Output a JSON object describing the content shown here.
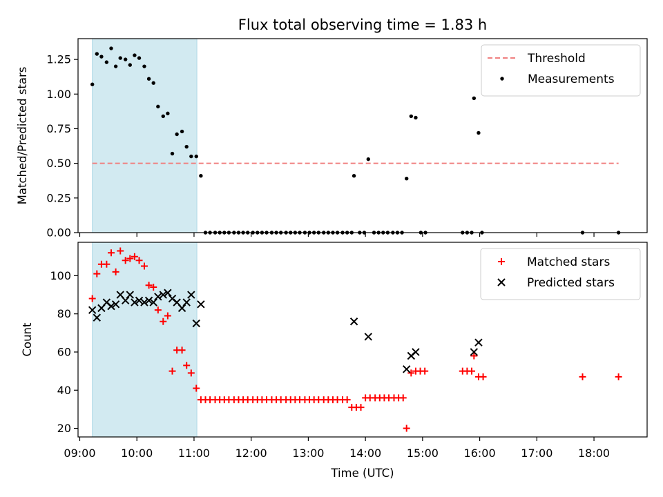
{
  "chart_data": {
    "title": "Flux total observing time = 1.83 h",
    "x_axis": {
      "label": "Time (UTC)",
      "range_hours": [
        8.97,
        18.93
      ],
      "tick_labels": [
        "09:00",
        "10:00",
        "11:00",
        "12:00",
        "13:00",
        "14:00",
        "15:00",
        "16:00",
        "17:00",
        "18:00"
      ]
    },
    "shaded_interval_hours": [
      9.22,
      11.05
    ],
    "shade_color": "#add8e6",
    "panels": [
      {
        "type": "scatter",
        "ylabel": "Matched/Predicted stars",
        "ylim": [
          0,
          1.4
        ],
        "y_ticks": [
          "0.00",
          "0.25",
          "0.50",
          "0.75",
          "1.00",
          "1.25"
        ],
        "legend_position": "top-right",
        "threshold": {
          "name": "Threshold",
          "y": 0.5,
          "x_range": [
            9.22,
            18.43
          ],
          "color": "#f08080",
          "style": "dashed"
        },
        "series": [
          {
            "name": "Measurements",
            "marker": "dot",
            "color": "#000000",
            "points": [
              [
                9.22,
                1.07
              ],
              [
                9.3,
                1.29
              ],
              [
                9.38,
                1.27
              ],
              [
                9.47,
                1.23
              ],
              [
                9.55,
                1.33
              ],
              [
                9.63,
                1.2
              ],
              [
                9.71,
                1.26
              ],
              [
                9.8,
                1.25
              ],
              [
                9.88,
                1.21
              ],
              [
                9.96,
                1.28
              ],
              [
                10.04,
                1.26
              ],
              [
                10.13,
                1.2
              ],
              [
                10.21,
                1.11
              ],
              [
                10.29,
                1.08
              ],
              [
                10.37,
                0.91
              ],
              [
                10.46,
                0.84
              ],
              [
                10.54,
                0.86
              ],
              [
                10.62,
                0.57
              ],
              [
                10.7,
                0.71
              ],
              [
                10.79,
                0.73
              ],
              [
                10.87,
                0.62
              ],
              [
                10.95,
                0.55
              ],
              [
                11.04,
                0.55
              ],
              [
                11.12,
                0.41
              ],
              [
                11.2,
                0
              ],
              [
                11.28,
                0
              ],
              [
                11.37,
                0
              ],
              [
                11.45,
                0
              ],
              [
                11.53,
                0
              ],
              [
                11.61,
                0
              ],
              [
                11.7,
                0
              ],
              [
                11.78,
                0
              ],
              [
                11.86,
                0
              ],
              [
                11.94,
                0
              ],
              [
                12.03,
                0
              ],
              [
                12.11,
                0
              ],
              [
                12.19,
                0
              ],
              [
                12.27,
                0
              ],
              [
                12.36,
                0
              ],
              [
                12.44,
                0
              ],
              [
                12.52,
                0
              ],
              [
                12.61,
                0
              ],
              [
                12.69,
                0
              ],
              [
                12.77,
                0
              ],
              [
                12.85,
                0
              ],
              [
                12.94,
                0
              ],
              [
                13.02,
                0
              ],
              [
                13.1,
                0
              ],
              [
                13.18,
                0
              ],
              [
                13.27,
                0
              ],
              [
                13.35,
                0
              ],
              [
                13.43,
                0
              ],
              [
                13.51,
                0
              ],
              [
                13.6,
                0
              ],
              [
                13.68,
                0
              ],
              [
                13.76,
                0
              ],
              [
                13.8,
                0.41
              ],
              [
                13.9,
                0
              ],
              [
                13.98,
                0
              ],
              [
                14.05,
                0.53
              ],
              [
                14.15,
                0
              ],
              [
                14.23,
                0
              ],
              [
                14.31,
                0
              ],
              [
                14.39,
                0
              ],
              [
                14.48,
                0
              ],
              [
                14.56,
                0
              ],
              [
                14.64,
                0
              ],
              [
                14.72,
                0.39
              ],
              [
                14.8,
                0.84
              ],
              [
                14.88,
                0.83
              ],
              [
                14.97,
                0
              ],
              [
                15.05,
                0
              ],
              [
                15.7,
                0
              ],
              [
                15.78,
                0
              ],
              [
                15.86,
                0
              ],
              [
                15.9,
                0.97
              ],
              [
                15.98,
                0.72
              ],
              [
                16.04,
                0
              ],
              [
                17.8,
                0
              ],
              [
                18.43,
                0
              ]
            ]
          }
        ]
      },
      {
        "type": "scatter",
        "ylabel": "Count",
        "ylim": [
          15.5,
          117.5
        ],
        "y_ticks": [
          "20",
          "40",
          "60",
          "80",
          "100"
        ],
        "legend_position": "top-right",
        "series": [
          {
            "name": "Matched stars",
            "marker": "plus",
            "color": "#ff0000",
            "points": [
              [
                9.22,
                88
              ],
              [
                9.3,
                101
              ],
              [
                9.38,
                106
              ],
              [
                9.47,
                106
              ],
              [
                9.55,
                112
              ],
              [
                9.63,
                102
              ],
              [
                9.71,
                113
              ],
              [
                9.8,
                108
              ],
              [
                9.88,
                109
              ],
              [
                9.96,
                110
              ],
              [
                10.04,
                108
              ],
              [
                10.13,
                105
              ],
              [
                10.21,
                95
              ],
              [
                10.29,
                94
              ],
              [
                10.37,
                82
              ],
              [
                10.46,
                76
              ],
              [
                10.54,
                79
              ],
              [
                10.62,
                50
              ],
              [
                10.7,
                61
              ],
              [
                10.79,
                61
              ],
              [
                10.87,
                53
              ],
              [
                10.95,
                49
              ],
              [
                11.04,
                41
              ],
              [
                11.12,
                35
              ],
              [
                11.2,
                35
              ],
              [
                11.28,
                35
              ],
              [
                11.37,
                35
              ],
              [
                11.45,
                35
              ],
              [
                11.53,
                35
              ],
              [
                11.61,
                35
              ],
              [
                11.7,
                35
              ],
              [
                11.78,
                35
              ],
              [
                11.86,
                35
              ],
              [
                11.94,
                35
              ],
              [
                12.03,
                35
              ],
              [
                12.11,
                35
              ],
              [
                12.19,
                35
              ],
              [
                12.27,
                35
              ],
              [
                12.36,
                35
              ],
              [
                12.44,
                35
              ],
              [
                12.52,
                35
              ],
              [
                12.61,
                35
              ],
              [
                12.69,
                35
              ],
              [
                12.77,
                35
              ],
              [
                12.85,
                35
              ],
              [
                12.94,
                35
              ],
              [
                13.02,
                35
              ],
              [
                13.1,
                35
              ],
              [
                13.18,
                35
              ],
              [
                13.27,
                35
              ],
              [
                13.35,
                35
              ],
              [
                13.43,
                35
              ],
              [
                13.51,
                35
              ],
              [
                13.6,
                35
              ],
              [
                13.68,
                35
              ],
              [
                13.76,
                31
              ],
              [
                13.84,
                31
              ],
              [
                13.92,
                31
              ],
              [
                14.0,
                36
              ],
              [
                14.08,
                36
              ],
              [
                14.17,
                36
              ],
              [
                14.25,
                36
              ],
              [
                14.33,
                36
              ],
              [
                14.41,
                36
              ],
              [
                14.5,
                36
              ],
              [
                14.58,
                36
              ],
              [
                14.66,
                36
              ],
              [
                14.72,
                20
              ],
              [
                14.8,
                49
              ],
              [
                14.88,
                50
              ],
              [
                14.96,
                50
              ],
              [
                15.04,
                50
              ],
              [
                15.7,
                50
              ],
              [
                15.78,
                50
              ],
              [
                15.86,
                50
              ],
              [
                15.9,
                58
              ],
              [
                15.98,
                47
              ],
              [
                16.06,
                47
              ],
              [
                17.8,
                47
              ],
              [
                18.43,
                47
              ]
            ]
          },
          {
            "name": "Predicted stars",
            "marker": "x",
            "color": "#000000",
            "points": [
              [
                9.22,
                82
              ],
              [
                9.3,
                78
              ],
              [
                9.38,
                83
              ],
              [
                9.47,
                86
              ],
              [
                9.55,
                84
              ],
              [
                9.63,
                85
              ],
              [
                9.71,
                90
              ],
              [
                9.8,
                87
              ],
              [
                9.88,
                90
              ],
              [
                9.96,
                86
              ],
              [
                10.04,
                87
              ],
              [
                10.13,
                86
              ],
              [
                10.21,
                87
              ],
              [
                10.29,
                86
              ],
              [
                10.37,
                89
              ],
              [
                10.46,
                90
              ],
              [
                10.54,
                91
              ],
              [
                10.62,
                88
              ],
              [
                10.7,
                86
              ],
              [
                10.79,
                83
              ],
              [
                10.87,
                86
              ],
              [
                10.95,
                90
              ],
              [
                11.04,
                75
              ],
              [
                11.12,
                85
              ],
              [
                13.8,
                76
              ],
              [
                14.05,
                68
              ],
              [
                14.72,
                51
              ],
              [
                14.8,
                58
              ],
              [
                14.88,
                60
              ],
              [
                15.9,
                60
              ],
              [
                15.98,
                65
              ]
            ]
          }
        ]
      }
    ]
  }
}
